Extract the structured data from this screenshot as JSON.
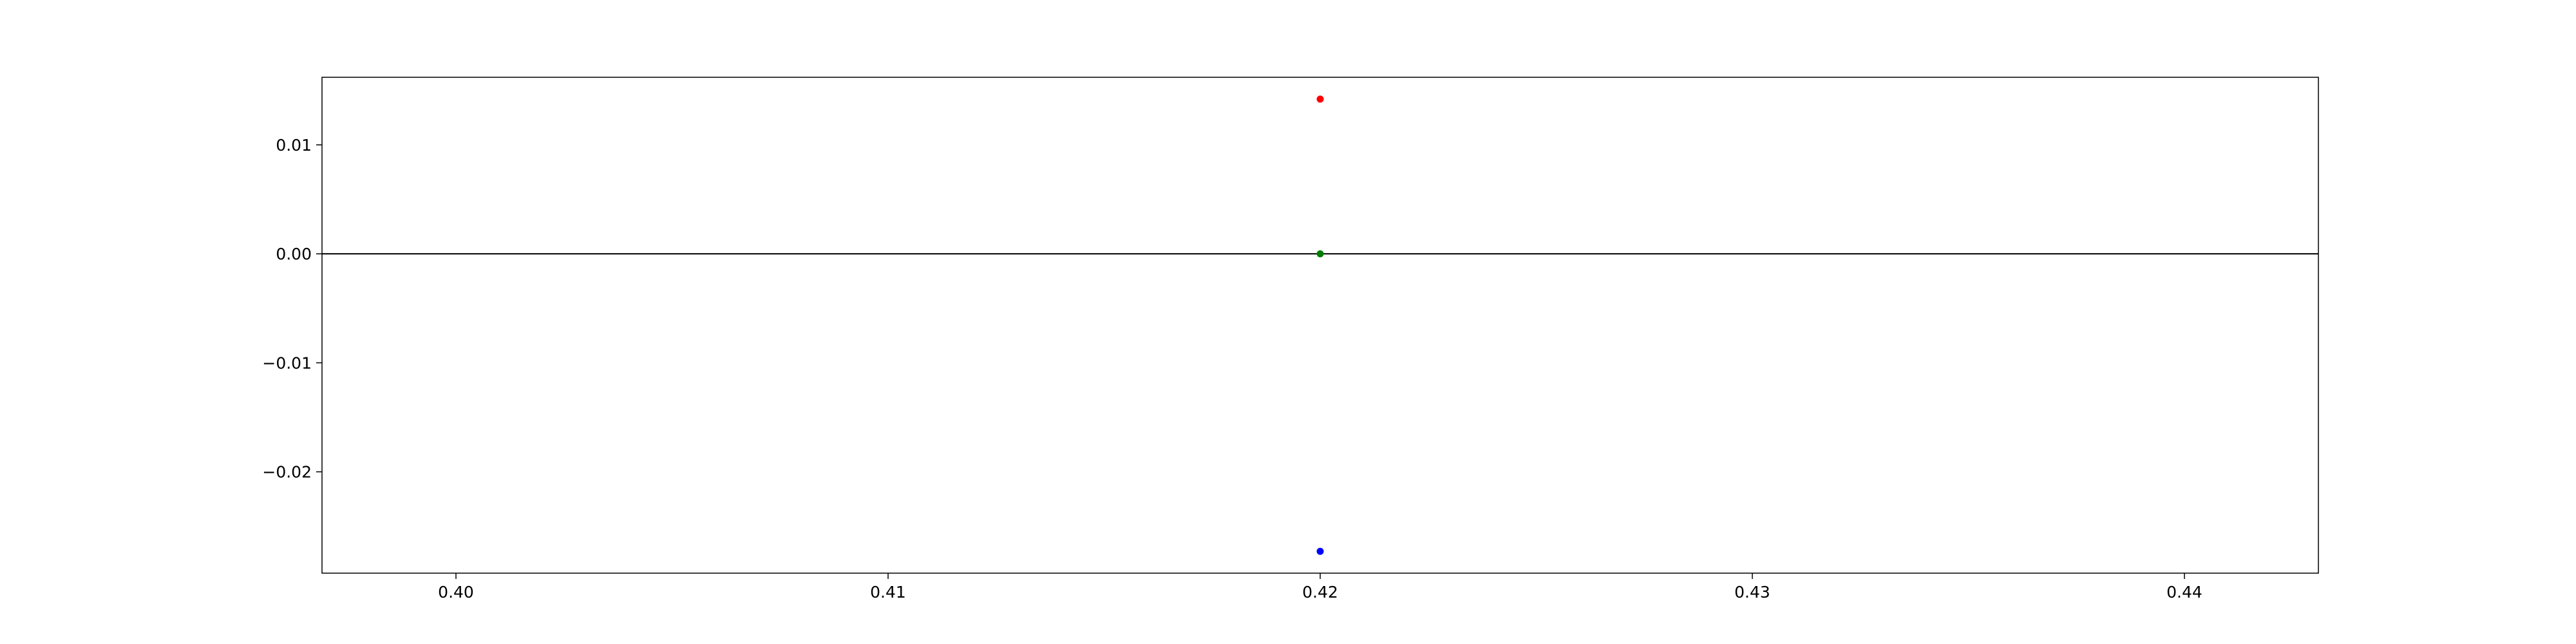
{
  "chart_data": {
    "type": "scatter",
    "title": "",
    "xlabel": "",
    "ylabel": "",
    "xlim": [
      0.3969,
      0.4431
    ],
    "ylim": [
      -0.0293,
      0.0162
    ],
    "x_ticks": [
      0.4,
      0.41,
      0.42,
      0.43,
      0.44
    ],
    "x_tick_labels": [
      "0.40",
      "0.41",
      "0.42",
      "0.43",
      "0.44"
    ],
    "y_ticks": [
      0.01,
      0.0,
      -0.01,
      -0.02
    ],
    "y_tick_labels": [
      "0.01",
      "0.00",
      "−0.01",
      "−0.02"
    ],
    "grid": false,
    "legend": false,
    "reference_line": {
      "y": 0.0,
      "color": "#000000"
    },
    "series": [
      {
        "x": [
          0.42
        ],
        "y": [
          0.0142
        ],
        "color": "#ff0000"
      },
      {
        "x": [
          0.42
        ],
        "y": [
          0.0
        ],
        "color": "#008000"
      },
      {
        "x": [
          0.42
        ],
        "y": [
          -0.0273
        ],
        "color": "#0000ff"
      }
    ]
  }
}
